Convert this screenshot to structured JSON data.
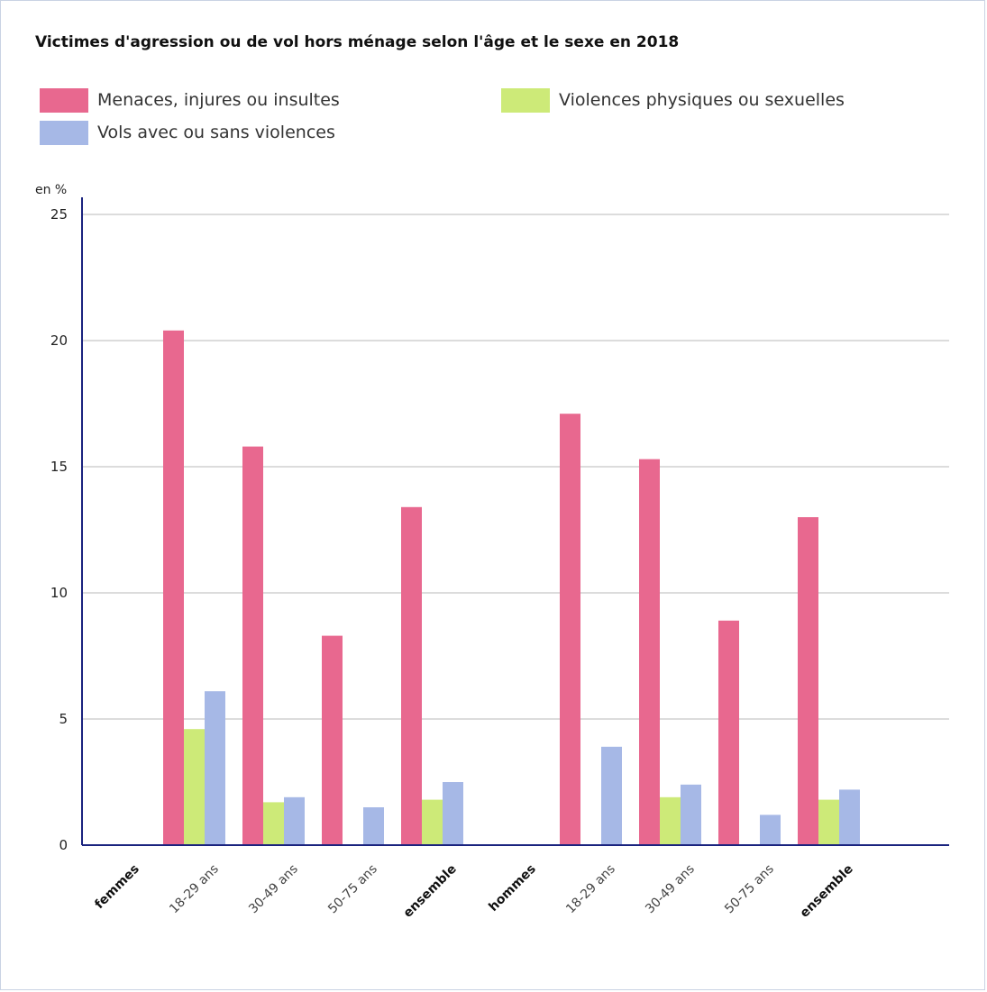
{
  "chart_data": {
    "type": "bar",
    "title": "Victimes d'agression ou de vol hors ménage selon l'âge et le sexe en 2018",
    "ylabel": "en %",
    "xlabel": "",
    "ylim": [
      0,
      25
    ],
    "yticks": [
      "0",
      "5",
      "10",
      "15",
      "20",
      "25"
    ],
    "grid": true,
    "legend_position": "top",
    "categories": [
      {
        "label": "femmes",
        "bold": true
      },
      {
        "label": "18-29 ans",
        "bold": false
      },
      {
        "label": "30-49 ans",
        "bold": false
      },
      {
        "label": "50-75 ans",
        "bold": false
      },
      {
        "label": "ensemble",
        "bold": true
      },
      {
        "label": "hommes",
        "bold": true
      },
      {
        "label": "18-29 ans",
        "bold": false
      },
      {
        "label": "30-49 ans",
        "bold": false
      },
      {
        "label": "50-75 ans",
        "bold": false
      },
      {
        "label": "ensemble",
        "bold": true
      }
    ],
    "series": [
      {
        "name": "Menaces, injures ou insultes",
        "color": "#e8688f",
        "values": [
          null,
          20.4,
          15.8,
          8.3,
          13.4,
          null,
          17.1,
          15.3,
          8.9,
          13.0
        ]
      },
      {
        "name": "Violences physiques ou sexuelles",
        "color": "#cdea78",
        "values": [
          null,
          4.6,
          1.7,
          null,
          1.8,
          null,
          null,
          1.9,
          null,
          1.8
        ]
      },
      {
        "name": "Vols avec ou sans violences",
        "color": "#a6b8e6",
        "values": [
          null,
          6.1,
          1.9,
          1.5,
          2.5,
          null,
          3.9,
          2.4,
          1.2,
          2.2
        ]
      }
    ]
  }
}
